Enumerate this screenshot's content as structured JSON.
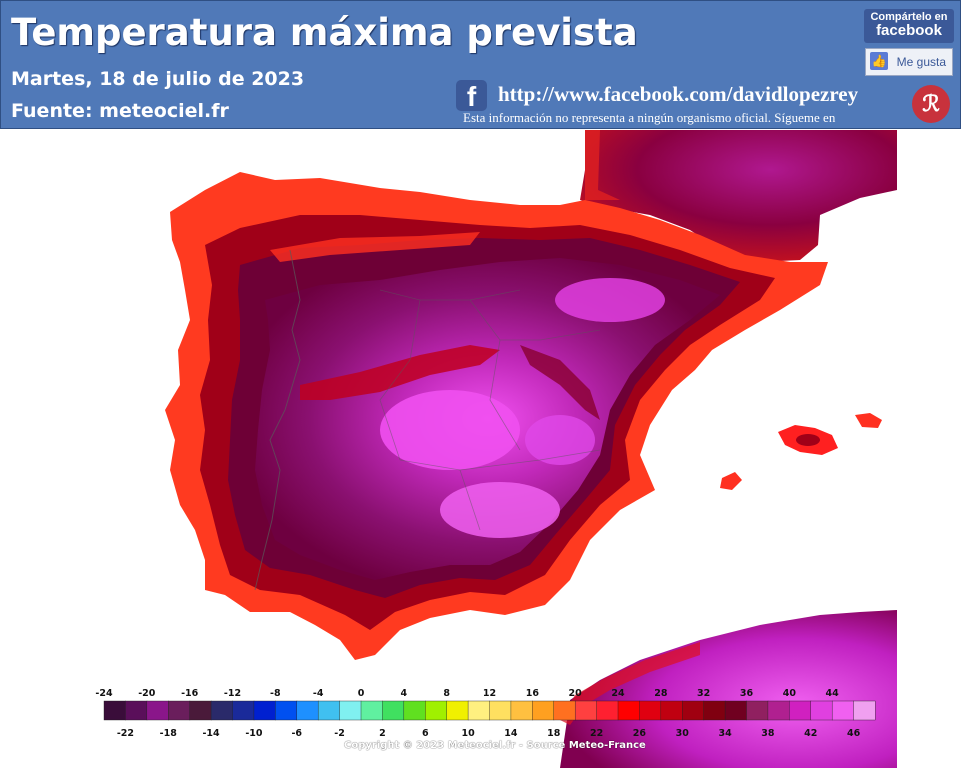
{
  "header": {
    "title": "Temperatura máxima prevista",
    "date": "Martes, 18 de julio de 2023",
    "source": "Fuente:  meteociel.fr",
    "facebook_url": "http://www.facebook.com/davidlopezrey",
    "disclaimer": "Esta información no representa a ningún organismo oficial. Sígueme en",
    "share_top": "Compártelo en",
    "share_brand": "facebook",
    "like_label": "Me gusta",
    "fb_icon_glyph": "f",
    "logo_glyph": "ℛ"
  },
  "legend": {
    "top_labels": [
      "-24",
      "-20",
      "-16",
      "-12",
      "-8",
      "-4",
      "0",
      "4",
      "8",
      "12",
      "16",
      "20",
      "24",
      "28",
      "32",
      "36",
      "40",
      "44"
    ],
    "bottom_labels": [
      "-22",
      "-18",
      "-14",
      "-10",
      "-6",
      "-2",
      "2",
      "6",
      "10",
      "14",
      "18",
      "22",
      "26",
      "30",
      "34",
      "38",
      "42",
      "46"
    ],
    "colors": [
      "#3a0d3a",
      "#5a0f5a",
      "#8a168a",
      "#6a1e5c",
      "#4a1a3a",
      "#2a2a6a",
      "#1a2a9a",
      "#0020d0",
      "#0050f0",
      "#1e90ff",
      "#40c0f0",
      "#80f0f0",
      "#60f0a0",
      "#40e060",
      "#60e020",
      "#a0f000",
      "#f0f000",
      "#fff080",
      "#ffe060",
      "#ffc040",
      "#ffa020",
      "#ff7020",
      "#ff4040",
      "#ff2030",
      "#ff0000",
      "#e00010",
      "#c00010",
      "#a00010",
      "#800010",
      "#700020",
      "#902060",
      "#b02090",
      "#d020c0",
      "#e040e0",
      "#f060f0",
      "#f0a0f0"
    ]
  },
  "copyright": "Copyright © 2023 Meteociel.fr - Source Meteo-France",
  "colors": {
    "header_bg": "#5079b8",
    "sea": "#ffffff",
    "hot_red": "#ff2020",
    "dark_red": "#8a0018",
    "maroon": "#6e0030",
    "magenta": "#c020c0",
    "pink": "#f040f0"
  }
}
